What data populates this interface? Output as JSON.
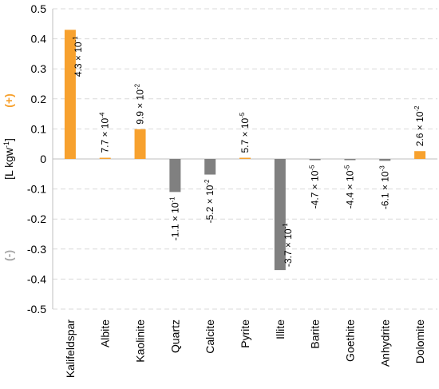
{
  "chart_data": {
    "type": "bar",
    "categories": [
      "Kalifeldspar",
      "Albite",
      "Kaolinite",
      "Quartz",
      "Calcite",
      "Pyrite",
      "Illite",
      "Barite",
      "Goethite",
      "Anhydrite",
      "Dolomite"
    ],
    "values": [
      0.43,
      0.00077,
      0.099,
      -0.11,
      -0.052,
      5.7e-05,
      -0.37,
      -4.7e-05,
      -4.4e-05,
      -0.0061,
      0.026
    ],
    "data_labels": [
      {
        "m": "4.3 × 10",
        "e": "-1"
      },
      {
        "m": "7.7 × 10",
        "e": "-4"
      },
      {
        "m": "9.9 × 10",
        "e": "-2"
      },
      {
        "m": "-1.1 × 10",
        "e": "-1"
      },
      {
        "m": "-5.2 × 10",
        "e": "-2"
      },
      {
        "m": "5.7 × 10",
        "e": "-5"
      },
      {
        "m": "-3.7 × 10",
        "e": "-1"
      },
      {
        "m": "-4.7 × 10",
        "e": "-5"
      },
      {
        "m": "-4.4 × 10",
        "e": "-5"
      },
      {
        "m": "-6.1 × 10",
        "e": "-3"
      },
      {
        "m": "2.6 × 10",
        "e": "-2"
      }
    ],
    "yticks": [
      "0.5",
      "0.4",
      "0.3",
      "0.2",
      "0.1",
      "0",
      "-0.1",
      "-0.2",
      "-0.3",
      "-0.4",
      "-0.5"
    ],
    "ylabel_main": "[L kgw",
    "ylabel_sup": "-1",
    "ylabel_end": "]",
    "pos_sign": "(+)",
    "neg_sign": "(-)",
    "ylim": [
      -0.5,
      0.5
    ],
    "grid": true,
    "colors": {
      "positive": "#f7a12e",
      "negative": "#808080",
      "pos_sign": "#f7a12e",
      "neg_sign": "#a6a6a6"
    }
  }
}
